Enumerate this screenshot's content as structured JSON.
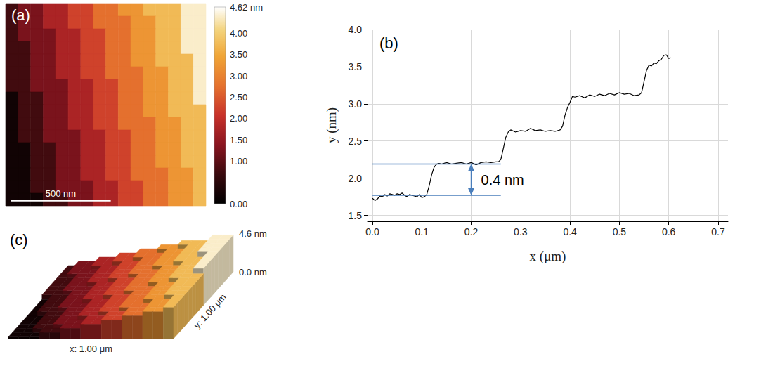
{
  "chart_data": [
    {
      "type": "heatmap",
      "panel": "(a)",
      "xlim": [
        0,
        1
      ],
      "ylim": [
        0,
        1
      ],
      "tick_labels": false,
      "z": [
        [
          0.75,
          1.25,
          1.25,
          1.75,
          1.75,
          2.25,
          2.25,
          2.75,
          2.75,
          3.25,
          3.25,
          3.75,
          3.75,
          3.75,
          4.4,
          4.4
        ],
        [
          0.75,
          1.25,
          1.25,
          1.75,
          1.75,
          2.25,
          2.25,
          2.75,
          2.75,
          2.75,
          3.25,
          3.25,
          3.75,
          3.75,
          4.4,
          4.4
        ],
        [
          0.75,
          1.25,
          1.25,
          1.25,
          1.75,
          1.75,
          2.25,
          2.25,
          2.75,
          2.75,
          3.25,
          3.25,
          3.75,
          3.75,
          4.4,
          4.4
        ],
        [
          0.75,
          0.75,
          1.25,
          1.25,
          1.75,
          1.75,
          2.25,
          2.25,
          2.75,
          2.75,
          3.25,
          3.25,
          3.75,
          3.75,
          4.4,
          4.4
        ],
        [
          0.75,
          0.75,
          1.25,
          1.25,
          1.75,
          1.75,
          2.25,
          2.25,
          2.75,
          2.75,
          3.25,
          3.25,
          3.75,
          3.75,
          3.75,
          4.4
        ],
        [
          0.75,
          0.75,
          1.25,
          1.25,
          1.75,
          1.75,
          2.25,
          2.25,
          2.75,
          2.75,
          2.75,
          3.25,
          3.25,
          3.75,
          3.75,
          4.4
        ],
        [
          0.75,
          0.75,
          1.25,
          1.25,
          1.25,
          1.75,
          1.75,
          2.25,
          2.25,
          2.75,
          2.75,
          3.25,
          3.25,
          3.75,
          3.75,
          4.4
        ],
        [
          0.2,
          0.75,
          0.75,
          1.25,
          1.25,
          1.75,
          1.75,
          2.25,
          2.25,
          2.75,
          2.75,
          3.25,
          3.25,
          3.75,
          3.75,
          4.4
        ],
        [
          0.2,
          0.75,
          0.75,
          1.25,
          1.25,
          1.75,
          1.75,
          2.25,
          2.25,
          2.75,
          2.75,
          3.25,
          3.25,
          3.75,
          3.75,
          3.75
        ],
        [
          0.2,
          0.75,
          0.75,
          1.25,
          1.25,
          1.75,
          1.75,
          2.25,
          2.25,
          2.75,
          2.75,
          2.75,
          3.25,
          3.25,
          3.75,
          3.75
        ],
        [
          0.2,
          0.75,
          0.75,
          1.25,
          1.25,
          1.25,
          1.75,
          1.75,
          2.25,
          2.25,
          2.75,
          2.75,
          3.25,
          3.25,
          3.75,
          3.75
        ],
        [
          0.2,
          0.2,
          0.75,
          0.75,
          1.25,
          1.25,
          1.75,
          1.75,
          2.25,
          2.25,
          2.75,
          2.75,
          3.25,
          3.25,
          3.75,
          3.75
        ],
        [
          0.2,
          0.2,
          0.75,
          0.75,
          1.25,
          1.25,
          1.75,
          1.75,
          2.25,
          2.25,
          2.75,
          2.75,
          3.25,
          3.25,
          3.75,
          3.75
        ],
        [
          0.2,
          0.2,
          0.75,
          0.75,
          1.25,
          1.25,
          1.75,
          1.75,
          2.25,
          2.25,
          2.75,
          2.75,
          2.75,
          3.25,
          3.25,
          3.75
        ],
        [
          0.2,
          0.2,
          0.75,
          0.75,
          1.25,
          1.25,
          1.25,
          1.75,
          1.75,
          2.25,
          2.25,
          2.75,
          2.75,
          3.25,
          3.25,
          3.75
        ],
        [
          0.2,
          0.2,
          0.2,
          0.75,
          0.75,
          1.25,
          1.25,
          1.75,
          1.75,
          2.25,
          2.25,
          2.75,
          2.75,
          3.25,
          3.25,
          3.75
        ]
      ],
      "scale_bar": {
        "label": "500 nm",
        "length": 0.5
      },
      "colorbar": {
        "range": [
          0,
          4.62
        ],
        "ticks": [
          {
            "value": 0,
            "label": "0.00"
          },
          {
            "value": 1,
            "label": "1.00"
          },
          {
            "value": 1.5,
            "label": "1.50"
          },
          {
            "value": 2,
            "label": "2.00"
          },
          {
            "value": 2.5,
            "label": "2.50"
          },
          {
            "value": 3,
            "label": "3.00"
          },
          {
            "value": 3.5,
            "label": "3.50"
          },
          {
            "value": 4,
            "label": "4.00"
          },
          {
            "value": 4.62,
            "label": "4.62 nm"
          }
        ]
      }
    },
    {
      "type": "line",
      "panel": "(b)",
      "xlabel": "x (μm)",
      "ylabel": "y (nm)",
      "color": "#000000",
      "grid": true,
      "x": [
        0,
        0.005,
        0.01,
        0.015,
        0.02,
        0.025,
        0.03,
        0.035,
        0.04,
        0.045,
        0.05,
        0.055,
        0.06,
        0.065,
        0.07,
        0.075,
        0.08,
        0.085,
        0.09,
        0.095,
        0.1,
        0.105,
        0.11,
        0.115,
        0.12,
        0.125,
        0.13,
        0.135,
        0.14,
        0.15,
        0.16,
        0.17,
        0.18,
        0.19,
        0.2,
        0.21,
        0.22,
        0.23,
        0.24,
        0.25,
        0.255,
        0.26,
        0.265,
        0.27,
        0.275,
        0.28,
        0.29,
        0.3,
        0.31,
        0.32,
        0.33,
        0.34,
        0.35,
        0.36,
        0.37,
        0.38,
        0.385,
        0.39,
        0.395,
        0.4,
        0.405,
        0.41,
        0.42,
        0.43,
        0.44,
        0.45,
        0.46,
        0.47,
        0.48,
        0.49,
        0.5,
        0.51,
        0.52,
        0.53,
        0.54,
        0.545,
        0.55,
        0.555,
        0.56,
        0.565,
        0.57,
        0.575,
        0.58,
        0.585,
        0.59,
        0.595,
        0.6,
        0.605
      ],
      "values": [
        1.73,
        1.7,
        1.72,
        1.76,
        1.75,
        1.78,
        1.76,
        1.79,
        1.78,
        1.77,
        1.79,
        1.78,
        1.8,
        1.77,
        1.75,
        1.78,
        1.77,
        1.76,
        1.75,
        1.78,
        1.74,
        1.75,
        1.78,
        1.9,
        2.05,
        2.15,
        2.19,
        2.2,
        2.19,
        2.21,
        2.19,
        2.2,
        2.21,
        2.19,
        2.21,
        2.18,
        2.21,
        2.22,
        2.21,
        2.22,
        2.22,
        2.25,
        2.4,
        2.55,
        2.62,
        2.65,
        2.62,
        2.64,
        2.63,
        2.67,
        2.64,
        2.65,
        2.63,
        2.64,
        2.63,
        2.65,
        2.7,
        2.85,
        2.95,
        3.02,
        3.1,
        3.09,
        3.11,
        3.08,
        3.12,
        3.1,
        3.13,
        3.11,
        3.14,
        3.12,
        3.15,
        3.13,
        3.14,
        3.11,
        3.12,
        3.15,
        3.3,
        3.45,
        3.52,
        3.51,
        3.55,
        3.54,
        3.58,
        3.6,
        3.65,
        3.66,
        3.61,
        3.62
      ],
      "xlim": [
        -0.01,
        0.72
      ],
      "ylim": [
        1.42,
        4.0
      ],
      "xticks": [
        {
          "value": 0,
          "label": "0.0"
        },
        0.1,
        0.2,
        0.3,
        0.4,
        0.5,
        0.6,
        0.7
      ],
      "yticks": [
        1.5,
        {
          "value": 2,
          "label": "2.0"
        },
        2.5,
        {
          "value": 3,
          "label": "3.0"
        },
        3.5,
        {
          "value": 4,
          "label": "4.0"
        }
      ],
      "annotation": {
        "text": "0.4 nm",
        "levels": [
          1.77,
          2.19
        ],
        "x_range": [
          0,
          0.26
        ],
        "arrow_x": 0.2,
        "color": "#4a7ebb"
      }
    },
    {
      "type": "surface3d",
      "panel": "(c)",
      "xlabel": "x: 1.00 μm",
      "ylabel": "y: 1.00 μm",
      "zlim": [
        0,
        4.6
      ],
      "zticks": [
        {
          "value": 0,
          "label": "0.0 nm"
        },
        {
          "value": 4.6,
          "label": "4.6 nm"
        }
      ]
    }
  ]
}
